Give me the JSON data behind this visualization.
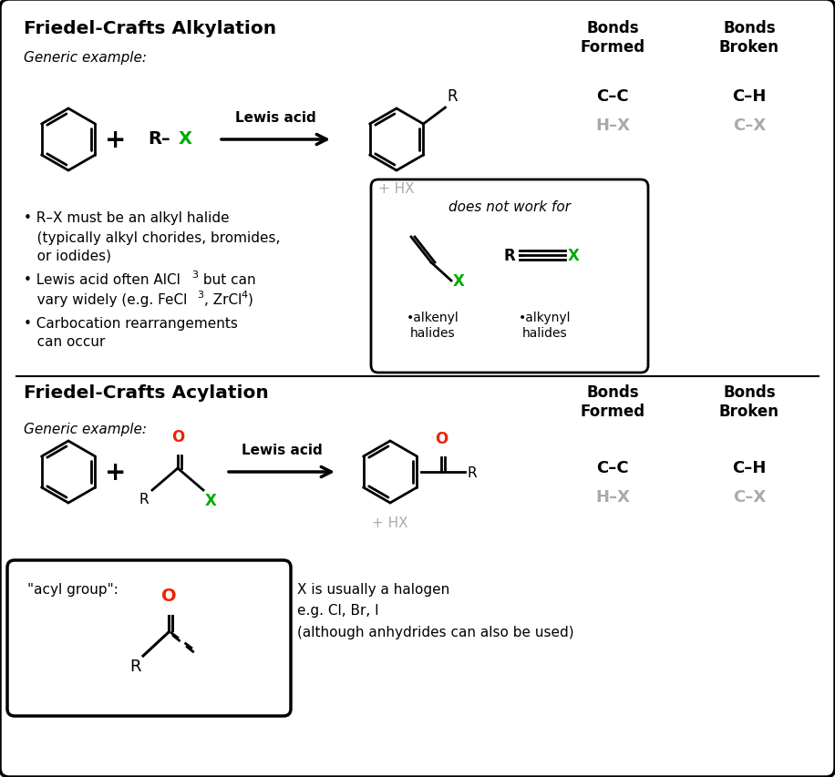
{
  "bg_color": "#e8e8e8",
  "panel_color": "#ffffff",
  "text_color": "#000000",
  "green_color": "#00aa00",
  "gray_color": "#aaaaaa",
  "red_color": "#ee2200",
  "section1_title": "Friedel-Crafts Alkylation",
  "section2_title": "Friedel-Crafts Acylation",
  "bonds_formed": "Bonds\nFormed",
  "bonds_broken": "Bonds\nBroken",
  "generic_example": "Generic example:",
  "lewis_acid": "Lewis acid",
  "plus_hx": "+ HX",
  "does_not_work": "does not work for",
  "alkenyl_label": "•alkenyl\nhalides",
  "alkynyl_label": "•alkynyl\nhalides",
  "section2_notes": "X is usually a halogen\ne.g. Cl, Br, I\n(although anhydrides can also be used)",
  "acyl_group_label": "\"acyl group\":"
}
